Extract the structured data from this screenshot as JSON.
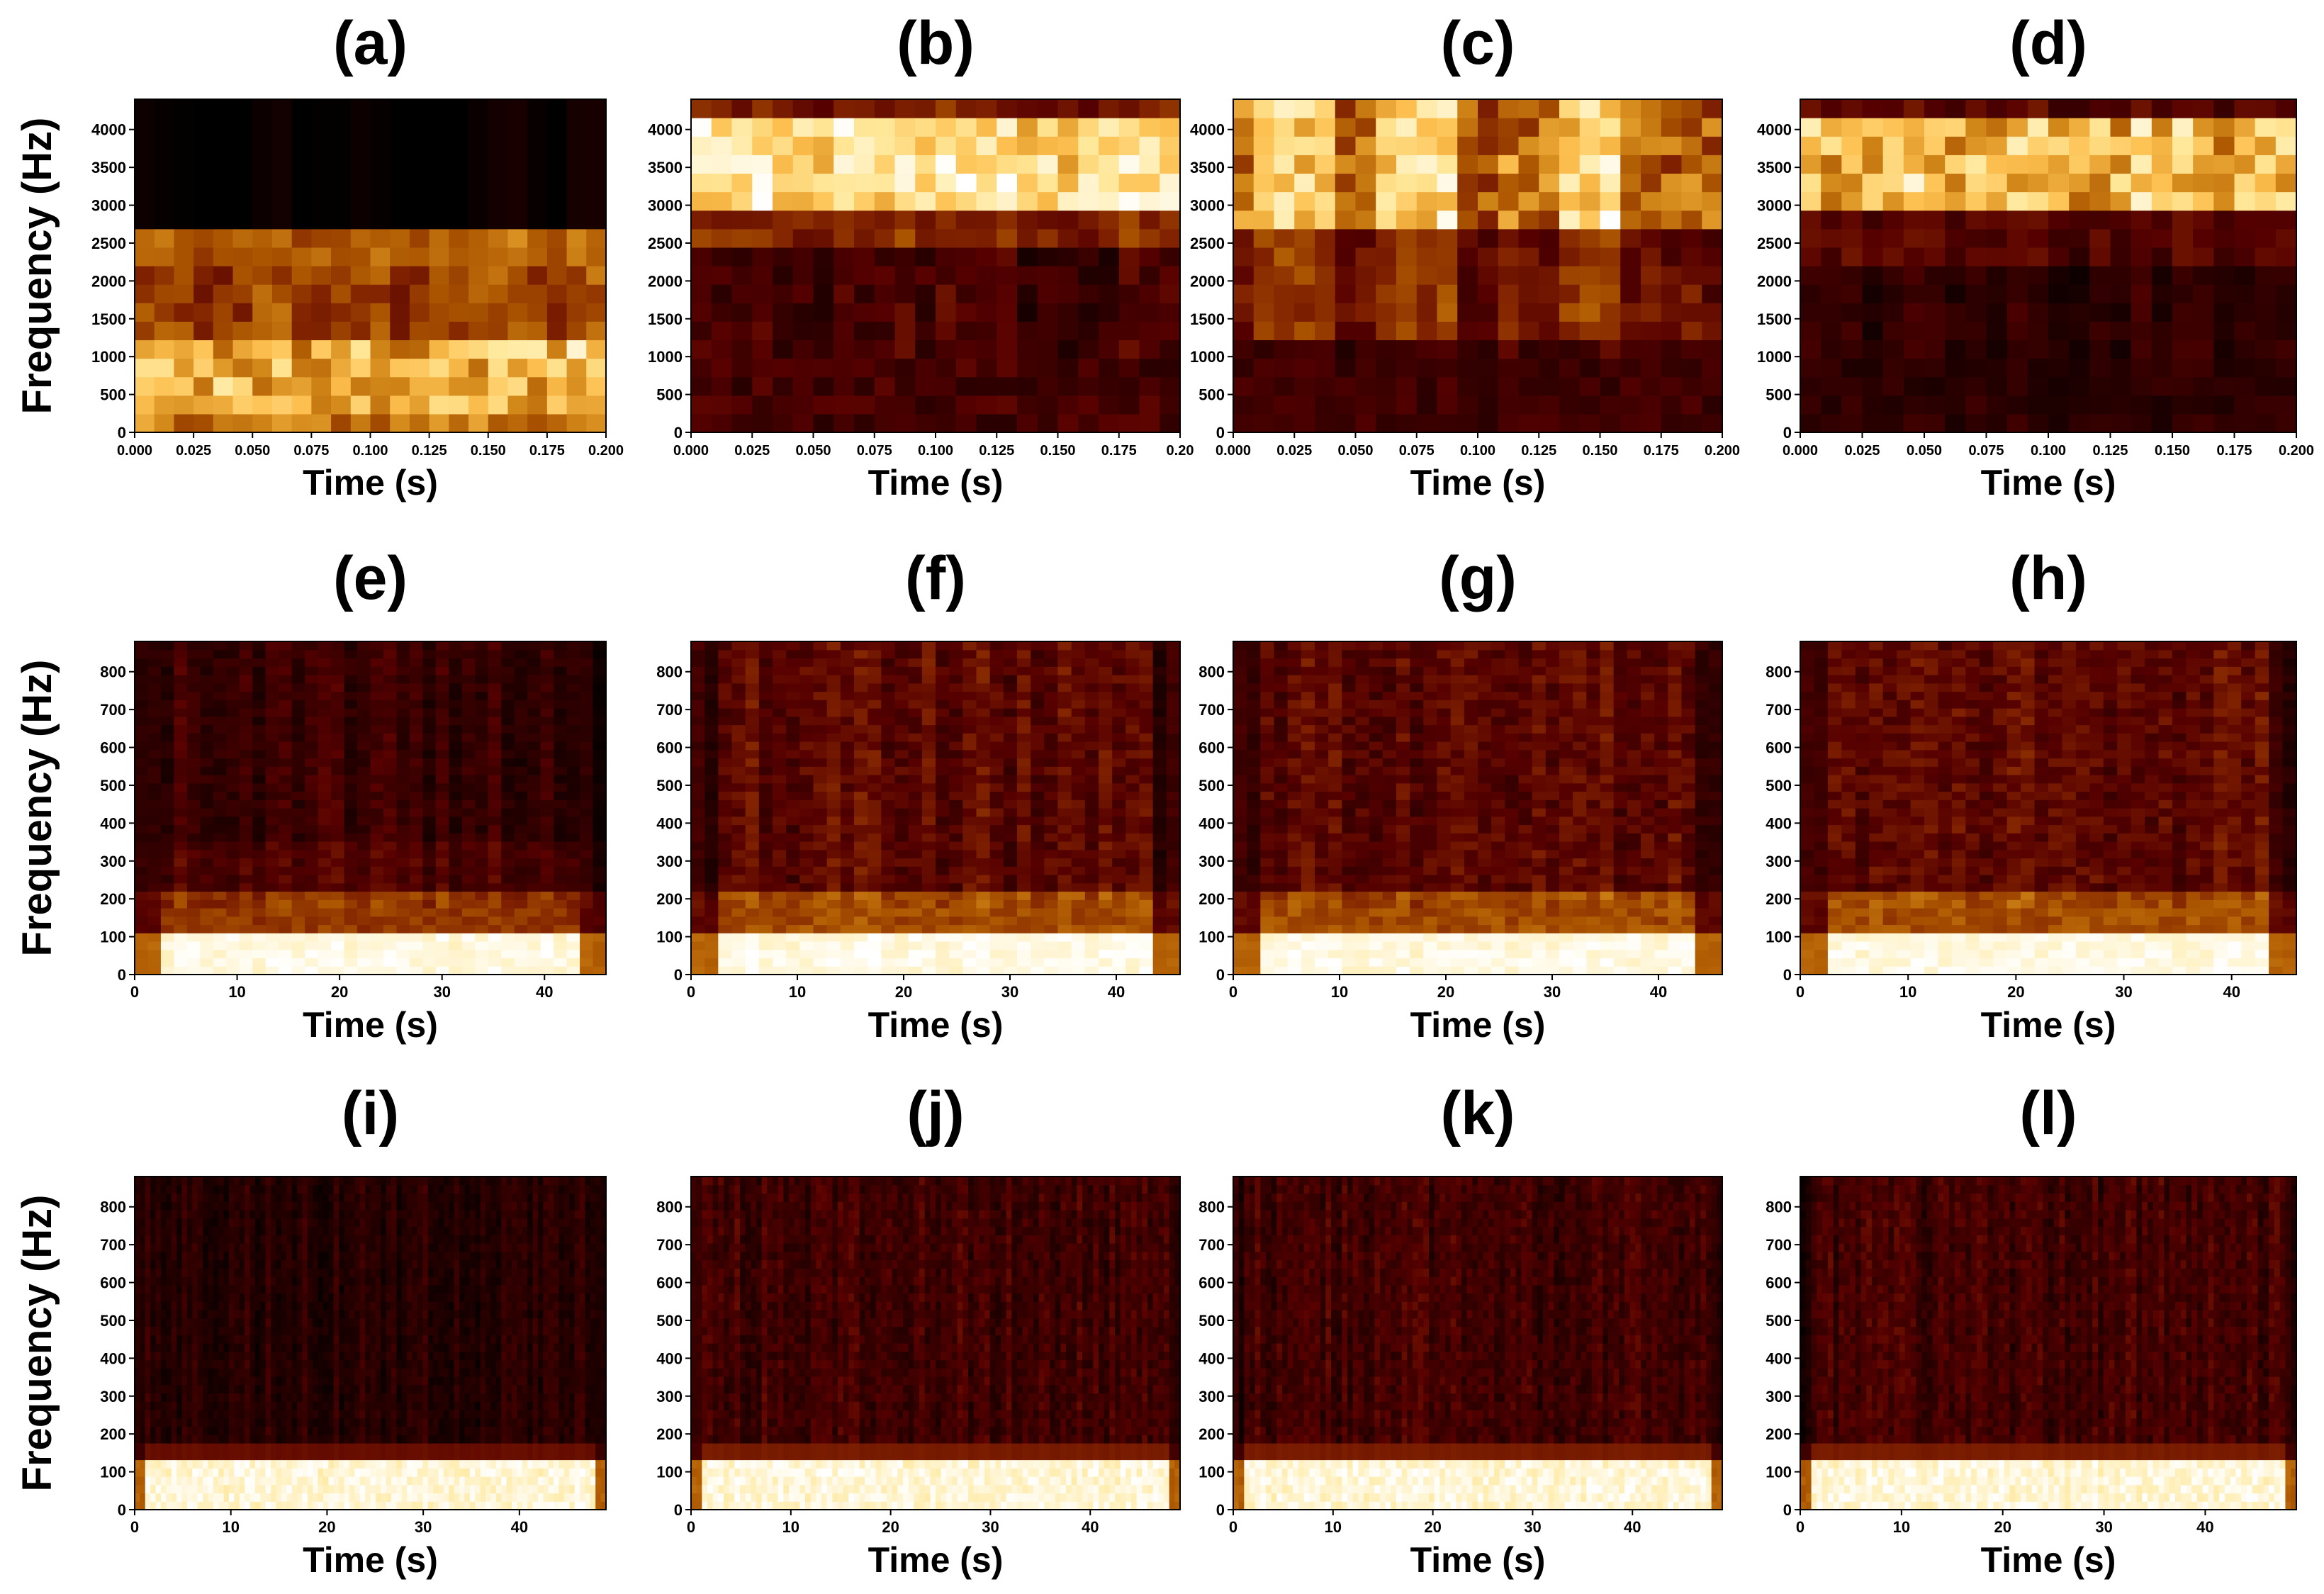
{
  "figure": {
    "ylabel": "Frequency (Hz)",
    "xlabel": "Time (s)",
    "colormap": "afmhot",
    "colors": {
      "cmap": [
        "#000000",
        "#2a0000",
        "#560000",
        "#802200",
        "#aa5400",
        "#d48a1a",
        "#fdc050",
        "#ffe89a",
        "#ffffff"
      ]
    }
  },
  "chart_data": [
    {
      "id": "a",
      "row": 0,
      "col": 0,
      "type": "heatmap",
      "title": "(a)",
      "profile": "bands_low",
      "xlim": [
        0,
        0.2
      ],
      "ylim": [
        0,
        4400
      ],
      "xticks": [
        0,
        0.025,
        0.05,
        0.075,
        0.1,
        0.125,
        0.15,
        0.175,
        0.2
      ],
      "xtick_labels": [
        "0.000",
        "0.025",
        "0.050",
        "0.075",
        "0.100",
        "0.125",
        "0.150",
        "0.175",
        "0.200"
      ],
      "yticks": [
        0,
        500,
        1000,
        1500,
        2000,
        2500,
        3000,
        3500,
        4000
      ],
      "ytick_labels": [
        "0",
        "500",
        "1000",
        "1500",
        "2000",
        "2500",
        "3000",
        "3500",
        "4000"
      ],
      "xlabel": "Time (s)",
      "ylabel": "Frequency (Hz)"
    },
    {
      "id": "b",
      "row": 0,
      "col": 1,
      "type": "heatmap",
      "title": "(b)",
      "profile": "bands_high",
      "xlim": [
        0,
        0.2
      ],
      "ylim": [
        0,
        4400
      ],
      "xticks": [
        0,
        0.025,
        0.05,
        0.075,
        0.1,
        0.125,
        0.15,
        0.175,
        0.2
      ],
      "xtick_labels": [
        "0.000",
        "0.025",
        "0.050",
        "0.075",
        "0.100",
        "0.125",
        "0.150",
        "0.175",
        "0.20"
      ],
      "yticks": [
        0,
        500,
        1000,
        1500,
        2000,
        2500,
        3000,
        3500,
        4000
      ],
      "ytick_labels": [
        "0",
        "500",
        "1000",
        "1500",
        "2000",
        "2500",
        "3000",
        "3500",
        "4000"
      ],
      "xlabel": "Time (s)",
      "ylabel": ""
    },
    {
      "id": "c",
      "row": 0,
      "col": 2,
      "type": "heatmap",
      "title": "(c)",
      "profile": "bands_high_bursts",
      "xlim": [
        0,
        0.2
      ],
      "ylim": [
        0,
        4400
      ],
      "xticks": [
        0,
        0.025,
        0.05,
        0.075,
        0.1,
        0.125,
        0.15,
        0.175,
        0.2
      ],
      "xtick_labels": [
        "0.000",
        "0.025",
        "0.050",
        "0.075",
        "0.100",
        "0.125",
        "0.150",
        "0.175",
        "0.200"
      ],
      "yticks": [
        0,
        500,
        1000,
        1500,
        2000,
        2500,
        3000,
        3500,
        4000
      ],
      "ytick_labels": [
        "0",
        "500",
        "1000",
        "1500",
        "2000",
        "2500",
        "3000",
        "3500",
        "4000"
      ],
      "xlabel": "Time (s)",
      "ylabel": ""
    },
    {
      "id": "d",
      "row": 0,
      "col": 3,
      "type": "heatmap",
      "title": "(d)",
      "profile": "bands_high_dark",
      "xlim": [
        0,
        0.2
      ],
      "ylim": [
        0,
        4400
      ],
      "xticks": [
        0,
        0.025,
        0.05,
        0.075,
        0.1,
        0.125,
        0.15,
        0.175,
        0.2
      ],
      "xtick_labels": [
        "0.000",
        "0.025",
        "0.050",
        "0.075",
        "0.100",
        "0.125",
        "0.150",
        "0.175",
        "0.200"
      ],
      "yticks": [
        0,
        500,
        1000,
        1500,
        2000,
        2500,
        3000,
        3500,
        4000
      ],
      "ytick_labels": [
        "0",
        "500",
        "1000",
        "1500",
        "2000",
        "2500",
        "3000",
        "3500",
        "4000"
      ],
      "xlabel": "Time (s)",
      "ylabel": ""
    },
    {
      "id": "e",
      "row": 1,
      "col": 0,
      "type": "heatmap",
      "title": "(e)",
      "profile": "low_band_dim",
      "xlim": [
        0,
        46
      ],
      "ylim": [
        0,
        880
      ],
      "xticks": [
        0,
        10,
        20,
        30,
        40
      ],
      "xtick_labels": [
        "0",
        "10",
        "20",
        "30",
        "40"
      ],
      "yticks": [
        0,
        100,
        200,
        300,
        400,
        500,
        600,
        700,
        800
      ],
      "ytick_labels": [
        "0",
        "100",
        "200",
        "300",
        "400",
        "500",
        "600",
        "700",
        "800"
      ],
      "xlabel": "Time (s)",
      "ylabel": "Frequency (Hz)"
    },
    {
      "id": "f",
      "row": 1,
      "col": 1,
      "type": "heatmap",
      "title": "(f)",
      "profile": "low_band_mid",
      "xlim": [
        0,
        46
      ],
      "ylim": [
        0,
        880
      ],
      "xticks": [
        0,
        10,
        20,
        30,
        40
      ],
      "xtick_labels": [
        "0",
        "10",
        "20",
        "30",
        "40"
      ],
      "yticks": [
        0,
        100,
        200,
        300,
        400,
        500,
        600,
        700,
        800
      ],
      "ytick_labels": [
        "0",
        "100",
        "200",
        "300",
        "400",
        "500",
        "600",
        "700",
        "800"
      ],
      "xlabel": "Time (s)",
      "ylabel": ""
    },
    {
      "id": "g",
      "row": 1,
      "col": 2,
      "type": "heatmap",
      "title": "(g)",
      "profile": "low_band_mid",
      "xlim": [
        0,
        46
      ],
      "ylim": [
        0,
        880
      ],
      "xticks": [
        0,
        10,
        20,
        30,
        40
      ],
      "xtick_labels": [
        "0",
        "10",
        "20",
        "30",
        "40"
      ],
      "yticks": [
        0,
        100,
        200,
        300,
        400,
        500,
        600,
        700,
        800
      ],
      "ytick_labels": [
        "0",
        "100",
        "200",
        "300",
        "400",
        "500",
        "600",
        "700",
        "800"
      ],
      "xlabel": "Time (s)",
      "ylabel": ""
    },
    {
      "id": "h",
      "row": 1,
      "col": 3,
      "type": "heatmap",
      "title": "(h)",
      "profile": "low_band_mid",
      "xlim": [
        0,
        46
      ],
      "ylim": [
        0,
        880
      ],
      "xticks": [
        0,
        10,
        20,
        30,
        40
      ],
      "xtick_labels": [
        "0",
        "10",
        "20",
        "30",
        "40"
      ],
      "yticks": [
        0,
        100,
        200,
        300,
        400,
        500,
        600,
        700,
        800
      ],
      "ytick_labels": [
        "0",
        "100",
        "200",
        "300",
        "400",
        "500",
        "600",
        "700",
        "800"
      ],
      "xlabel": "Time (s)",
      "ylabel": ""
    },
    {
      "id": "i",
      "row": 2,
      "col": 0,
      "type": "heatmap",
      "title": "(i)",
      "profile": "fine_dark",
      "xlim": [
        0,
        49
      ],
      "ylim": [
        0,
        880
      ],
      "xticks": [
        0,
        10,
        20,
        30,
        40
      ],
      "xtick_labels": [
        "0",
        "10",
        "20",
        "30",
        "40"
      ],
      "yticks": [
        0,
        100,
        200,
        300,
        400,
        500,
        600,
        700,
        800
      ],
      "ytick_labels": [
        "0",
        "100",
        "200",
        "300",
        "400",
        "500",
        "600",
        "700",
        "800"
      ],
      "xlabel": "Time (s)",
      "ylabel": "Frequency (Hz)"
    },
    {
      "id": "j",
      "row": 2,
      "col": 1,
      "type": "heatmap",
      "title": "(j)",
      "profile": "fine_mid",
      "xlim": [
        0,
        49
      ],
      "ylim": [
        0,
        880
      ],
      "xticks": [
        0,
        10,
        20,
        30,
        40
      ],
      "xtick_labels": [
        "0",
        "10",
        "20",
        "30",
        "40"
      ],
      "yticks": [
        0,
        100,
        200,
        300,
        400,
        500,
        600,
        700,
        800
      ],
      "ytick_labels": [
        "0",
        "100",
        "200",
        "300",
        "400",
        "500",
        "600",
        "700",
        "800"
      ],
      "xlabel": "Time (s)",
      "ylabel": ""
    },
    {
      "id": "k",
      "row": 2,
      "col": 2,
      "type": "heatmap",
      "title": "(k)",
      "profile": "fine_mid",
      "xlim": [
        0,
        49
      ],
      "ylim": [
        0,
        880
      ],
      "xticks": [
        0,
        10,
        20,
        30,
        40
      ],
      "xtick_labels": [
        "0",
        "10",
        "20",
        "30",
        "40"
      ],
      "yticks": [
        0,
        100,
        200,
        300,
        400,
        500,
        600,
        700,
        800
      ],
      "ytick_labels": [
        "0",
        "100",
        "200",
        "300",
        "400",
        "500",
        "600",
        "700",
        "800"
      ],
      "xlabel": "Time (s)",
      "ylabel": ""
    },
    {
      "id": "l",
      "row": 2,
      "col": 3,
      "type": "heatmap",
      "title": "(l)",
      "profile": "fine_mid",
      "xlim": [
        0,
        49
      ],
      "ylim": [
        0,
        880
      ],
      "xticks": [
        0,
        10,
        20,
        30,
        40
      ],
      "xtick_labels": [
        "0",
        "10",
        "20",
        "30",
        "40"
      ],
      "yticks": [
        0,
        100,
        200,
        300,
        400,
        500,
        600,
        700,
        800
      ],
      "ytick_labels": [
        "0",
        "100",
        "200",
        "300",
        "400",
        "500",
        "600",
        "700",
        "800"
      ],
      "xlabel": "Time (s)",
      "ylabel": ""
    }
  ]
}
